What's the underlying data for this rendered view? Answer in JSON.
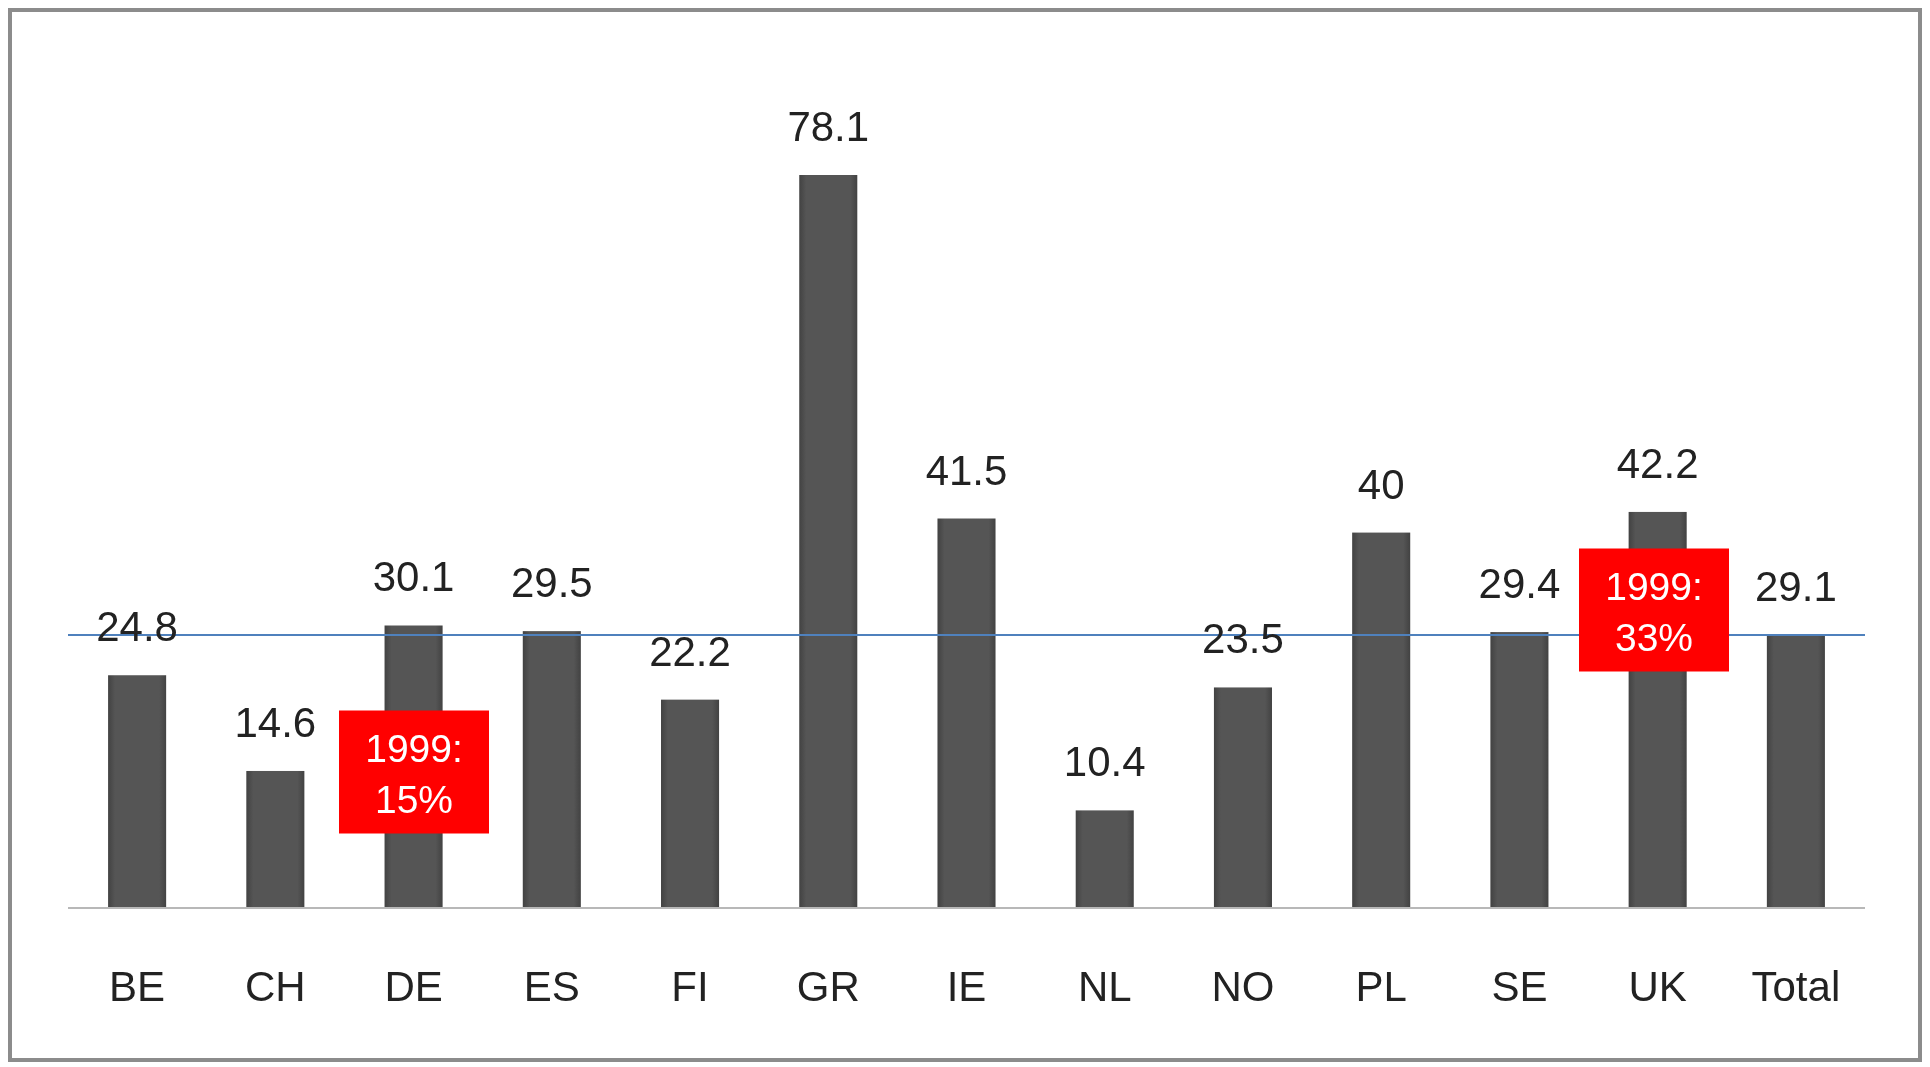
{
  "chart_data": {
    "type": "bar",
    "categories": [
      "BE",
      "CH",
      "DE",
      "ES",
      "FI",
      "GR",
      "IE",
      "NL",
      "NO",
      "PL",
      "SE",
      "UK",
      "Total"
    ],
    "values": [
      24.8,
      14.6,
      30.1,
      29.5,
      22.2,
      78.1,
      41.5,
      10.4,
      23.5,
      40,
      29.4,
      42.2,
      29.1
    ],
    "color": "#555555",
    "data_labels": true,
    "ref_lines": [
      {
        "axis": "y",
        "value": 29.1,
        "color": "#4f81bd"
      }
    ],
    "annotations": [
      "1999: 15%",
      "1999: 33%"
    ]
  }
}
